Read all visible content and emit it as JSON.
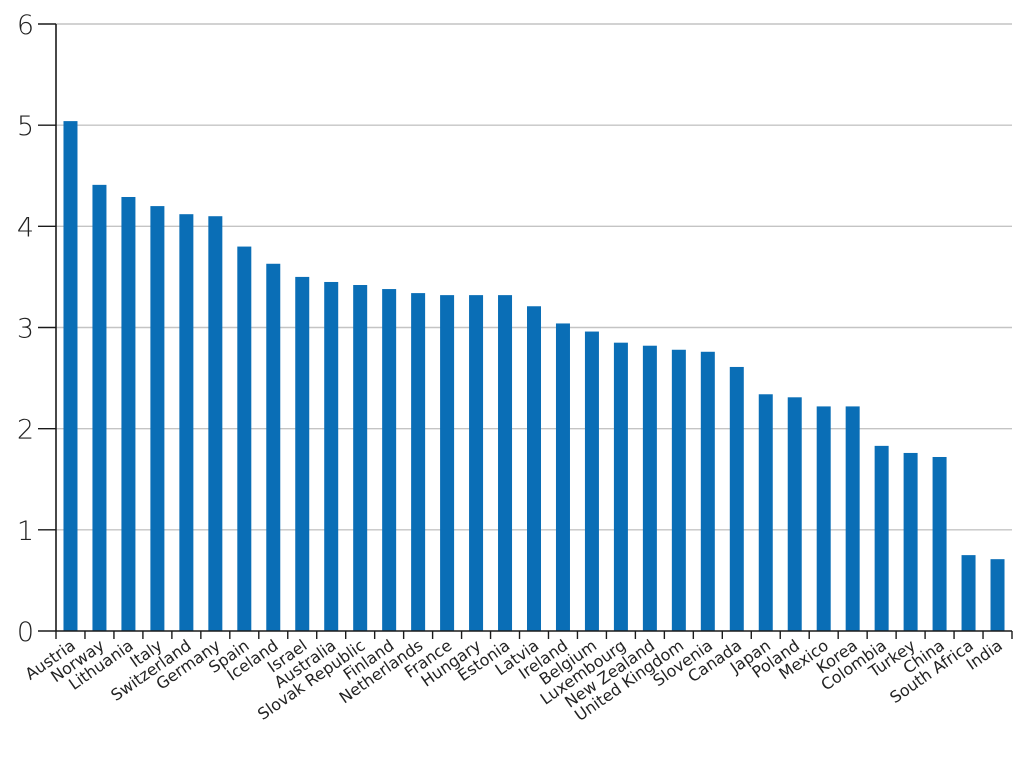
{
  "chart_data": {
    "type": "bar",
    "title": "",
    "xlabel": "",
    "ylabel": "",
    "ylim": [
      0,
      6
    ],
    "yticks": [
      0,
      1,
      2,
      3,
      4,
      5,
      6
    ],
    "grid": true,
    "legend": "none",
    "bar_color": "#0a6eb6",
    "categories": [
      "Austria",
      "Norway",
      "Lithuania",
      "Italy",
      "Switzerland",
      "Germany",
      "Spain",
      "Iceland",
      "Israel",
      "Australia",
      "Slovak Republic",
      "Finland",
      "Netherlands",
      "France",
      "Hungary",
      "Estonia",
      "Latvia",
      "Ireland",
      "Belgium",
      "Luxembourg",
      "New Zealand",
      "United Kingdom",
      "Slovenia",
      "Canada",
      "Japan",
      "Poland",
      "Mexico",
      "Korea",
      "Colombia",
      "Turkey",
      "China",
      "South Africa",
      "India"
    ],
    "values": [
      5.04,
      4.41,
      4.29,
      4.2,
      4.12,
      4.1,
      3.8,
      3.63,
      3.5,
      3.45,
      3.42,
      3.38,
      3.34,
      3.32,
      3.32,
      3.32,
      3.21,
      3.04,
      2.96,
      2.85,
      2.82,
      2.78,
      2.76,
      2.61,
      2.34,
      2.31,
      2.22,
      2.22,
      1.83,
      1.76,
      1.72,
      0.75,
      0.71
    ]
  }
}
